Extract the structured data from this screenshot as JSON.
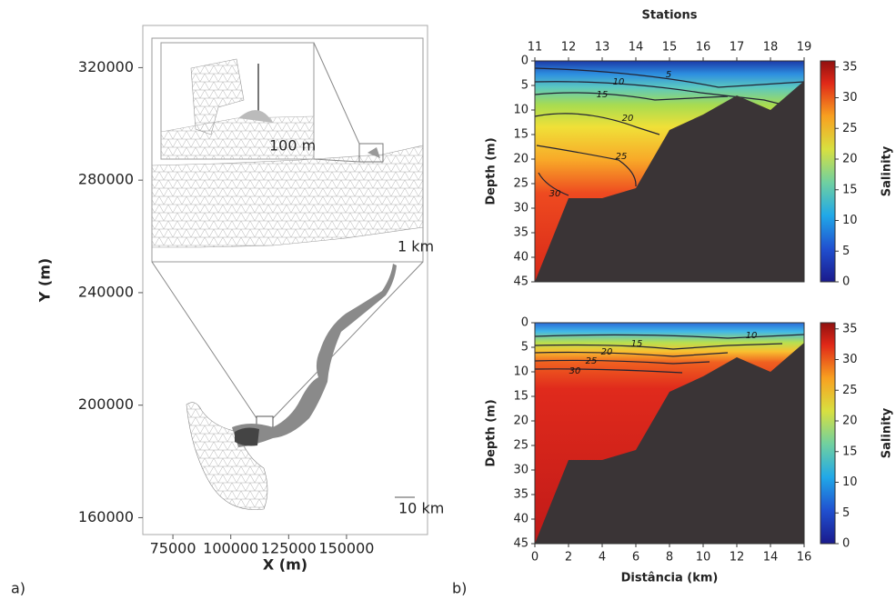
{
  "chart_data": [
    {
      "type": "mesh",
      "panel_label": "a)",
      "xlabel": "X (m)",
      "ylabel": "Y (m)",
      "xlim": [
        62000,
        185000
      ],
      "ylim": [
        154000,
        335000
      ],
      "xticks": [
        75000,
        100000,
        125000,
        150000
      ],
      "yticks": [
        160000,
        200000,
        240000,
        280000,
        320000
      ],
      "scale_labels": [
        "100 m",
        "1 km",
        "10 km"
      ]
    },
    {
      "type": "contour",
      "x2label": "Stations",
      "x2lim": [
        11,
        19
      ],
      "x2ticks": [
        11,
        12,
        13,
        14,
        15,
        16,
        17,
        18,
        19
      ],
      "ylabel": "Depth (m)",
      "ylim": [
        0,
        45
      ],
      "yticks": [
        0,
        5,
        10,
        15,
        20,
        25,
        30,
        35,
        40,
        45
      ],
      "clabel": "Salinity",
      "clim": [
        0,
        36
      ],
      "cticks": [
        0,
        5,
        10,
        15,
        20,
        25,
        30,
        35
      ],
      "contour_labels": [
        5,
        10,
        15,
        20,
        25,
        30
      ]
    },
    {
      "type": "contour",
      "panel_label": "b)",
      "xlabel": "Distância (km)",
      "xlim": [
        0,
        16
      ],
      "xticks": [
        0,
        2,
        4,
        6,
        8,
        10,
        12,
        14,
        16
      ],
      "ylabel": "Depth (m)",
      "ylim": [
        0,
        45
      ],
      "yticks": [
        0,
        5,
        10,
        15,
        20,
        25,
        30,
        35,
        40,
        45
      ],
      "clabel": "Salinity",
      "clim": [
        0,
        36
      ],
      "cticks": [
        0,
        5,
        10,
        15,
        20,
        25,
        30,
        35
      ],
      "contour_labels": [
        10,
        15,
        20,
        25,
        30
      ]
    }
  ]
}
